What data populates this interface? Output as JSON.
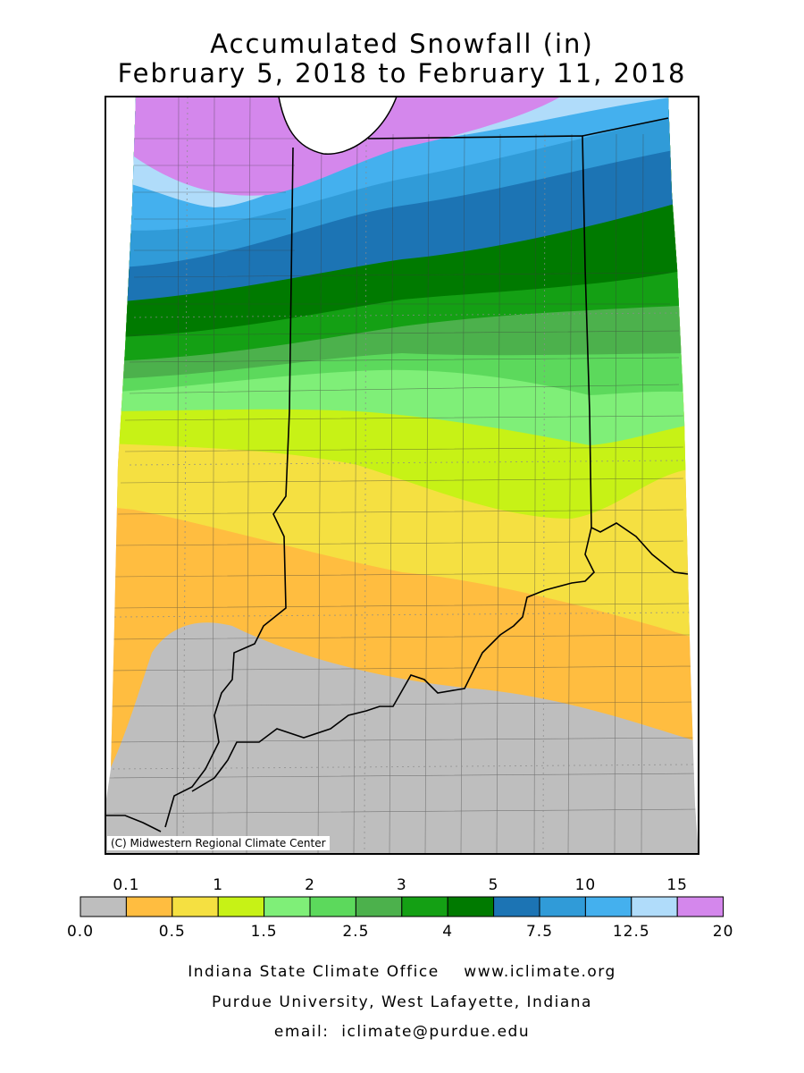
{
  "title": {
    "line1": "Accumulated Snowfall (in)",
    "line2": "February 5, 2018 to February 11, 2018"
  },
  "credit": "(C) Midwestern Regional Climate Center",
  "legend": {
    "colors": [
      "#bebebe",
      "#ffbd40",
      "#f5e041",
      "#c7f216",
      "#7fef78",
      "#5cd95c",
      "#4cb14c",
      "#14a014",
      "#007a00",
      "#1c74b4",
      "#309bd8",
      "#44b0ee",
      "#b0dcfa",
      "#d487ec"
    ],
    "top_labels": [
      "0.1",
      "1",
      "2",
      "3",
      "5",
      "10",
      "15"
    ],
    "bottom_labels": [
      "0.0",
      "0.5",
      "1.5",
      "2.5",
      "4",
      "7.5",
      "12.5",
      "20"
    ]
  },
  "footer": {
    "line1": "Indiana State Climate Office    www.iclimate.org",
    "line2": "Purdue University, West Lafayette, Indiana",
    "line3": "email:  iclimate@purdue.edu"
  }
}
